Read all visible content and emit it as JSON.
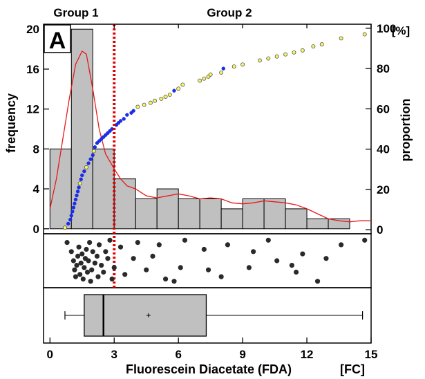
{
  "panel_label": "A",
  "groups": [
    "Group 1",
    "Group 2"
  ],
  "chart_data": [
    {
      "type": "bar",
      "subtype": "histogram",
      "xlabel": "Fluorescein Diacetate (FDA)",
      "xunit": "[FC]",
      "ylabel": "frequency",
      "y2label": "proportion",
      "y2unit": "[%]",
      "xlim": [
        -0.3,
        15
      ],
      "ylim": [
        -0.5,
        20.5
      ],
      "y2lim": [
        -2,
        102
      ],
      "xticks": [
        0,
        3,
        6,
        9,
        12,
        15
      ],
      "yticks": [
        0,
        4,
        8,
        12,
        16,
        20
      ],
      "y2ticks": [
        0,
        20,
        40,
        60,
        80,
        100
      ],
      "threshold_x": 3,
      "bins": [
        {
          "x0": 0,
          "x1": 1,
          "count": 8
        },
        {
          "x0": 1,
          "x1": 2,
          "count": 20
        },
        {
          "x0": 2,
          "x1": 3,
          "count": 8
        },
        {
          "x0": 3,
          "x1": 4,
          "count": 5
        },
        {
          "x0": 4,
          "x1": 5,
          "count": 3
        },
        {
          "x0": 5,
          "x1": 6,
          "count": 4
        },
        {
          "x0": 6,
          "x1": 7,
          "count": 3
        },
        {
          "x0": 7,
          "x1": 8,
          "count": 3
        },
        {
          "x0": 8,
          "x1": 9,
          "count": 2
        },
        {
          "x0": 9,
          "x1": 10,
          "count": 3
        },
        {
          "x0": 10,
          "x1": 11,
          "count": 3
        },
        {
          "x0": 11,
          "x1": 12,
          "count": 2
        },
        {
          "x0": 12,
          "x1": 13,
          "count": 1
        },
        {
          "x0": 13,
          "x1": 14,
          "count": 1
        }
      ],
      "density_curve": [
        [
          0,
          2
        ],
        [
          0.3,
          5
        ],
        [
          0.6,
          9
        ],
        [
          0.9,
          13
        ],
        [
          1.2,
          16.5
        ],
        [
          1.5,
          17.8
        ],
        [
          1.7,
          17.5
        ],
        [
          2.0,
          14
        ],
        [
          2.3,
          10
        ],
        [
          2.6,
          7.5
        ],
        [
          3.0,
          6
        ],
        [
          3.3,
          5.0
        ],
        [
          3.6,
          4.3
        ],
        [
          4.0,
          4.0
        ],
        [
          4.5,
          3.3
        ],
        [
          5.0,
          3.1
        ],
        [
          5.5,
          3.3
        ],
        [
          6.0,
          3.5
        ],
        [
          6.5,
          3.3
        ],
        [
          7.0,
          3.0
        ],
        [
          7.5,
          3.1
        ],
        [
          8.0,
          3.0
        ],
        [
          8.5,
          2.6
        ],
        [
          9.0,
          2.5
        ],
        [
          9.5,
          2.6
        ],
        [
          10.0,
          2.8
        ],
        [
          10.5,
          2.7
        ],
        [
          11.0,
          2.6
        ],
        [
          11.5,
          2.4
        ],
        [
          12.0,
          2.0
        ],
        [
          12.5,
          1.5
        ],
        [
          13.0,
          1.0
        ],
        [
          13.5,
          0.8
        ],
        [
          14.0,
          0.7
        ],
        [
          14.5,
          0.8
        ],
        [
          15,
          0.8
        ]
      ],
      "ecdf_points": [
        {
          "x": 0.7,
          "p": 1,
          "g": "y"
        },
        {
          "x": 0.85,
          "p": 3,
          "g": "b"
        },
        {
          "x": 0.95,
          "p": 5,
          "g": "b"
        },
        {
          "x": 1.0,
          "p": 7,
          "g": "b"
        },
        {
          "x": 1.05,
          "p": 9,
          "g": "b"
        },
        {
          "x": 1.1,
          "p": 11,
          "g": "b"
        },
        {
          "x": 1.15,
          "p": 13,
          "g": "b"
        },
        {
          "x": 1.2,
          "p": 15,
          "g": "b"
        },
        {
          "x": 1.25,
          "p": 17,
          "g": "b"
        },
        {
          "x": 1.3,
          "p": 19,
          "g": "b"
        },
        {
          "x": 1.35,
          "p": 21,
          "g": "b"
        },
        {
          "x": 1.4,
          "p": 23,
          "g": "y"
        },
        {
          "x": 1.45,
          "p": 25,
          "g": "b"
        },
        {
          "x": 1.5,
          "p": 27,
          "g": "b"
        },
        {
          "x": 1.6,
          "p": 29,
          "g": "b"
        },
        {
          "x": 1.7,
          "p": 31,
          "g": "y"
        },
        {
          "x": 1.8,
          "p": 33,
          "g": "b"
        },
        {
          "x": 1.9,
          "p": 35,
          "g": "b"
        },
        {
          "x": 2.0,
          "p": 37,
          "g": "b"
        },
        {
          "x": 2.05,
          "p": 39,
          "g": "y"
        },
        {
          "x": 2.1,
          "p": 41,
          "g": "b"
        },
        {
          "x": 2.2,
          "p": 43,
          "g": "b"
        },
        {
          "x": 2.3,
          "p": 44,
          "g": "b"
        },
        {
          "x": 2.4,
          "p": 45,
          "g": "b"
        },
        {
          "x": 2.5,
          "p": 46,
          "g": "b"
        },
        {
          "x": 2.6,
          "p": 47,
          "g": "b"
        },
        {
          "x": 2.7,
          "p": 48,
          "g": "b"
        },
        {
          "x": 2.8,
          "p": 49,
          "g": "b"
        },
        {
          "x": 2.9,
          "p": 50,
          "g": "b"
        },
        {
          "x": 3.1,
          "p": 52,
          "g": "b"
        },
        {
          "x": 3.2,
          "p": 53,
          "g": "b"
        },
        {
          "x": 3.3,
          "p": 54,
          "g": "b"
        },
        {
          "x": 3.45,
          "p": 55,
          "g": "b"
        },
        {
          "x": 3.6,
          "p": 57,
          "g": "b"
        },
        {
          "x": 3.8,
          "p": 58,
          "g": "b"
        },
        {
          "x": 3.9,
          "p": 59,
          "g": "b"
        },
        {
          "x": 4.1,
          "p": 61,
          "g": "y"
        },
        {
          "x": 4.4,
          "p": 62,
          "g": "y"
        },
        {
          "x": 4.7,
          "p": 63,
          "g": "y"
        },
        {
          "x": 4.9,
          "p": 64,
          "g": "y"
        },
        {
          "x": 5.2,
          "p": 65,
          "g": "y"
        },
        {
          "x": 5.4,
          "p": 66,
          "g": "y"
        },
        {
          "x": 5.6,
          "p": 67,
          "g": "y"
        },
        {
          "x": 5.8,
          "p": 69,
          "g": "b"
        },
        {
          "x": 6.0,
          "p": 70,
          "g": "y"
        },
        {
          "x": 6.2,
          "p": 72,
          "g": "y"
        },
        {
          "x": 7.0,
          "p": 74,
          "g": "y"
        },
        {
          "x": 7.2,
          "p": 75,
          "g": "y"
        },
        {
          "x": 7.4,
          "p": 76,
          "g": "y"
        },
        {
          "x": 7.5,
          "p": 77,
          "g": "y"
        },
        {
          "x": 8.0,
          "p": 78,
          "g": "y"
        },
        {
          "x": 8.1,
          "p": 80,
          "g": "b"
        },
        {
          "x": 8.6,
          "p": 81,
          "g": "y"
        },
        {
          "x": 9.0,
          "p": 82,
          "g": "y"
        },
        {
          "x": 9.8,
          "p": 84,
          "g": "y"
        },
        {
          "x": 10.2,
          "p": 85,
          "g": "y"
        },
        {
          "x": 10.6,
          "p": 86,
          "g": "y"
        },
        {
          "x": 11.0,
          "p": 87,
          "g": "y"
        },
        {
          "x": 11.4,
          "p": 88,
          "g": "y"
        },
        {
          "x": 11.8,
          "p": 89,
          "g": "y"
        },
        {
          "x": 12.3,
          "p": 91,
          "g": "y"
        },
        {
          "x": 12.7,
          "p": 92,
          "g": "y"
        },
        {
          "x": 13.6,
          "p": 95,
          "g": "y"
        },
        {
          "x": 14.7,
          "p": 97,
          "g": "y"
        }
      ]
    },
    {
      "type": "scatter",
      "subtype": "strip plot",
      "points": [
        {
          "x": 0.8,
          "j": 0.9
        },
        {
          "x": 1.0,
          "j": 0.7
        },
        {
          "x": 1.1,
          "j": 0.5
        },
        {
          "x": 1.15,
          "j": 0.3
        },
        {
          "x": 1.2,
          "j": 0.15
        },
        {
          "x": 1.25,
          "j": 0.4
        },
        {
          "x": 1.3,
          "j": 0.6
        },
        {
          "x": 1.35,
          "j": 0.8
        },
        {
          "x": 1.4,
          "j": 0.2
        },
        {
          "x": 1.45,
          "j": 0.45
        },
        {
          "x": 1.5,
          "j": 0.65
        },
        {
          "x": 1.55,
          "j": 0.1
        },
        {
          "x": 1.6,
          "j": 0.35
        },
        {
          "x": 1.65,
          "j": 0.55
        },
        {
          "x": 1.7,
          "j": 0.75
        },
        {
          "x": 1.75,
          "j": 0.25
        },
        {
          "x": 1.8,
          "j": 0.5
        },
        {
          "x": 1.85,
          "j": 0.9
        },
        {
          "x": 1.9,
          "j": 0.05
        },
        {
          "x": 1.95,
          "j": 0.3
        },
        {
          "x": 2.0,
          "j": 0.7
        },
        {
          "x": 2.1,
          "j": 0.45
        },
        {
          "x": 2.2,
          "j": 0.6
        },
        {
          "x": 2.25,
          "j": 0.15
        },
        {
          "x": 2.3,
          "j": 0.85
        },
        {
          "x": 2.4,
          "j": 0.4
        },
        {
          "x": 2.5,
          "j": 0.25
        },
        {
          "x": 2.6,
          "j": 0.7
        },
        {
          "x": 2.7,
          "j": 0.55
        },
        {
          "x": 2.8,
          "j": 0.95
        },
        {
          "x": 2.9,
          "j": 0.1
        },
        {
          "x": 3.0,
          "j": 0.35
        },
        {
          "x": 3.3,
          "j": 0.8
        },
        {
          "x": 3.5,
          "j": 0.2
        },
        {
          "x": 3.9,
          "j": 0.55
        },
        {
          "x": 4.1,
          "j": 0.9
        },
        {
          "x": 4.5,
          "j": 0.3
        },
        {
          "x": 4.8,
          "j": 0.6
        },
        {
          "x": 5.1,
          "j": 0.85
        },
        {
          "x": 5.4,
          "j": 0.1
        },
        {
          "x": 5.8,
          "j": 0.05
        },
        {
          "x": 6.1,
          "j": 0.35
        },
        {
          "x": 6.3,
          "j": 0.95
        },
        {
          "x": 7.2,
          "j": 0.75
        },
        {
          "x": 7.4,
          "j": 0.3
        },
        {
          "x": 8.0,
          "j": 0.15
        },
        {
          "x": 8.3,
          "j": 0.85
        },
        {
          "x": 9.3,
          "j": 0.35
        },
        {
          "x": 9.5,
          "j": 0.7
        },
        {
          "x": 10.2,
          "j": 0.95
        },
        {
          "x": 10.6,
          "j": 0.5
        },
        {
          "x": 11.3,
          "j": 0.4
        },
        {
          "x": 11.5,
          "j": 0.25
        },
        {
          "x": 11.8,
          "j": 0.65
        },
        {
          "x": 12.5,
          "j": 0.05
        },
        {
          "x": 12.9,
          "j": 0.55
        },
        {
          "x": 13.6,
          "j": 0.85
        },
        {
          "x": 14.7,
          "j": 0.95
        }
      ]
    },
    {
      "type": "box",
      "min": 0.7,
      "q1": 1.6,
      "median": 2.5,
      "q3": 7.3,
      "max": 14.6,
      "mean": 4.6
    }
  ],
  "colors": {
    "bar_fill": "#c0c0c0",
    "density": "#e81818",
    "threshold": "#e00000",
    "ecdf_group1": "#1a2ee6",
    "ecdf_group2": "#f4f46a",
    "strip_point": "#2a2a2a",
    "box_fill": "#c0c0c0"
  }
}
